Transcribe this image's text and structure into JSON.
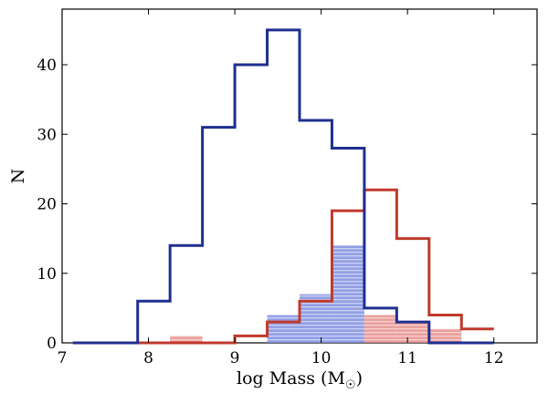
{
  "chart_data": {
    "type": "histogram",
    "xlabel": "log Mass (M",
    "xlabel_sub": "☉",
    "xlabel_close": ")",
    "ylabel": "N",
    "xlim": [
      7,
      12.5
    ],
    "ylim": [
      0,
      48
    ],
    "xticks": [
      7,
      8,
      9,
      10,
      11,
      12
    ],
    "yticks": [
      0,
      10,
      20,
      30,
      40
    ],
    "bin_edges": [
      7.125,
      7.5,
      7.875,
      8.25,
      8.625,
      9.0,
      9.375,
      9.75,
      10.125,
      10.5,
      10.875,
      11.25,
      11.625,
      12.0
    ],
    "series": [
      {
        "name": "blue-outline",
        "style": "step",
        "color": "#1f2f8f",
        "values": [
          0,
          0,
          6,
          14,
          31,
          40,
          45,
          32,
          28,
          5,
          3,
          0,
          0
        ]
      },
      {
        "name": "red-outline",
        "style": "step",
        "color": "#c0392b",
        "values": [
          0,
          0,
          0,
          0,
          0,
          1,
          3,
          6,
          19,
          22,
          15,
          4,
          2
        ]
      },
      {
        "name": "blue-filled",
        "style": "bar",
        "color": "#6f7fd6",
        "values": [
          0,
          0,
          0,
          0,
          0,
          0,
          4,
          7,
          14,
          0,
          0,
          0,
          0
        ]
      },
      {
        "name": "red-filled",
        "style": "bar",
        "color": "#e07b78",
        "values": [
          0,
          0,
          0,
          1,
          0,
          0,
          0,
          0,
          0,
          4,
          3,
          2,
          0
        ]
      }
    ]
  }
}
